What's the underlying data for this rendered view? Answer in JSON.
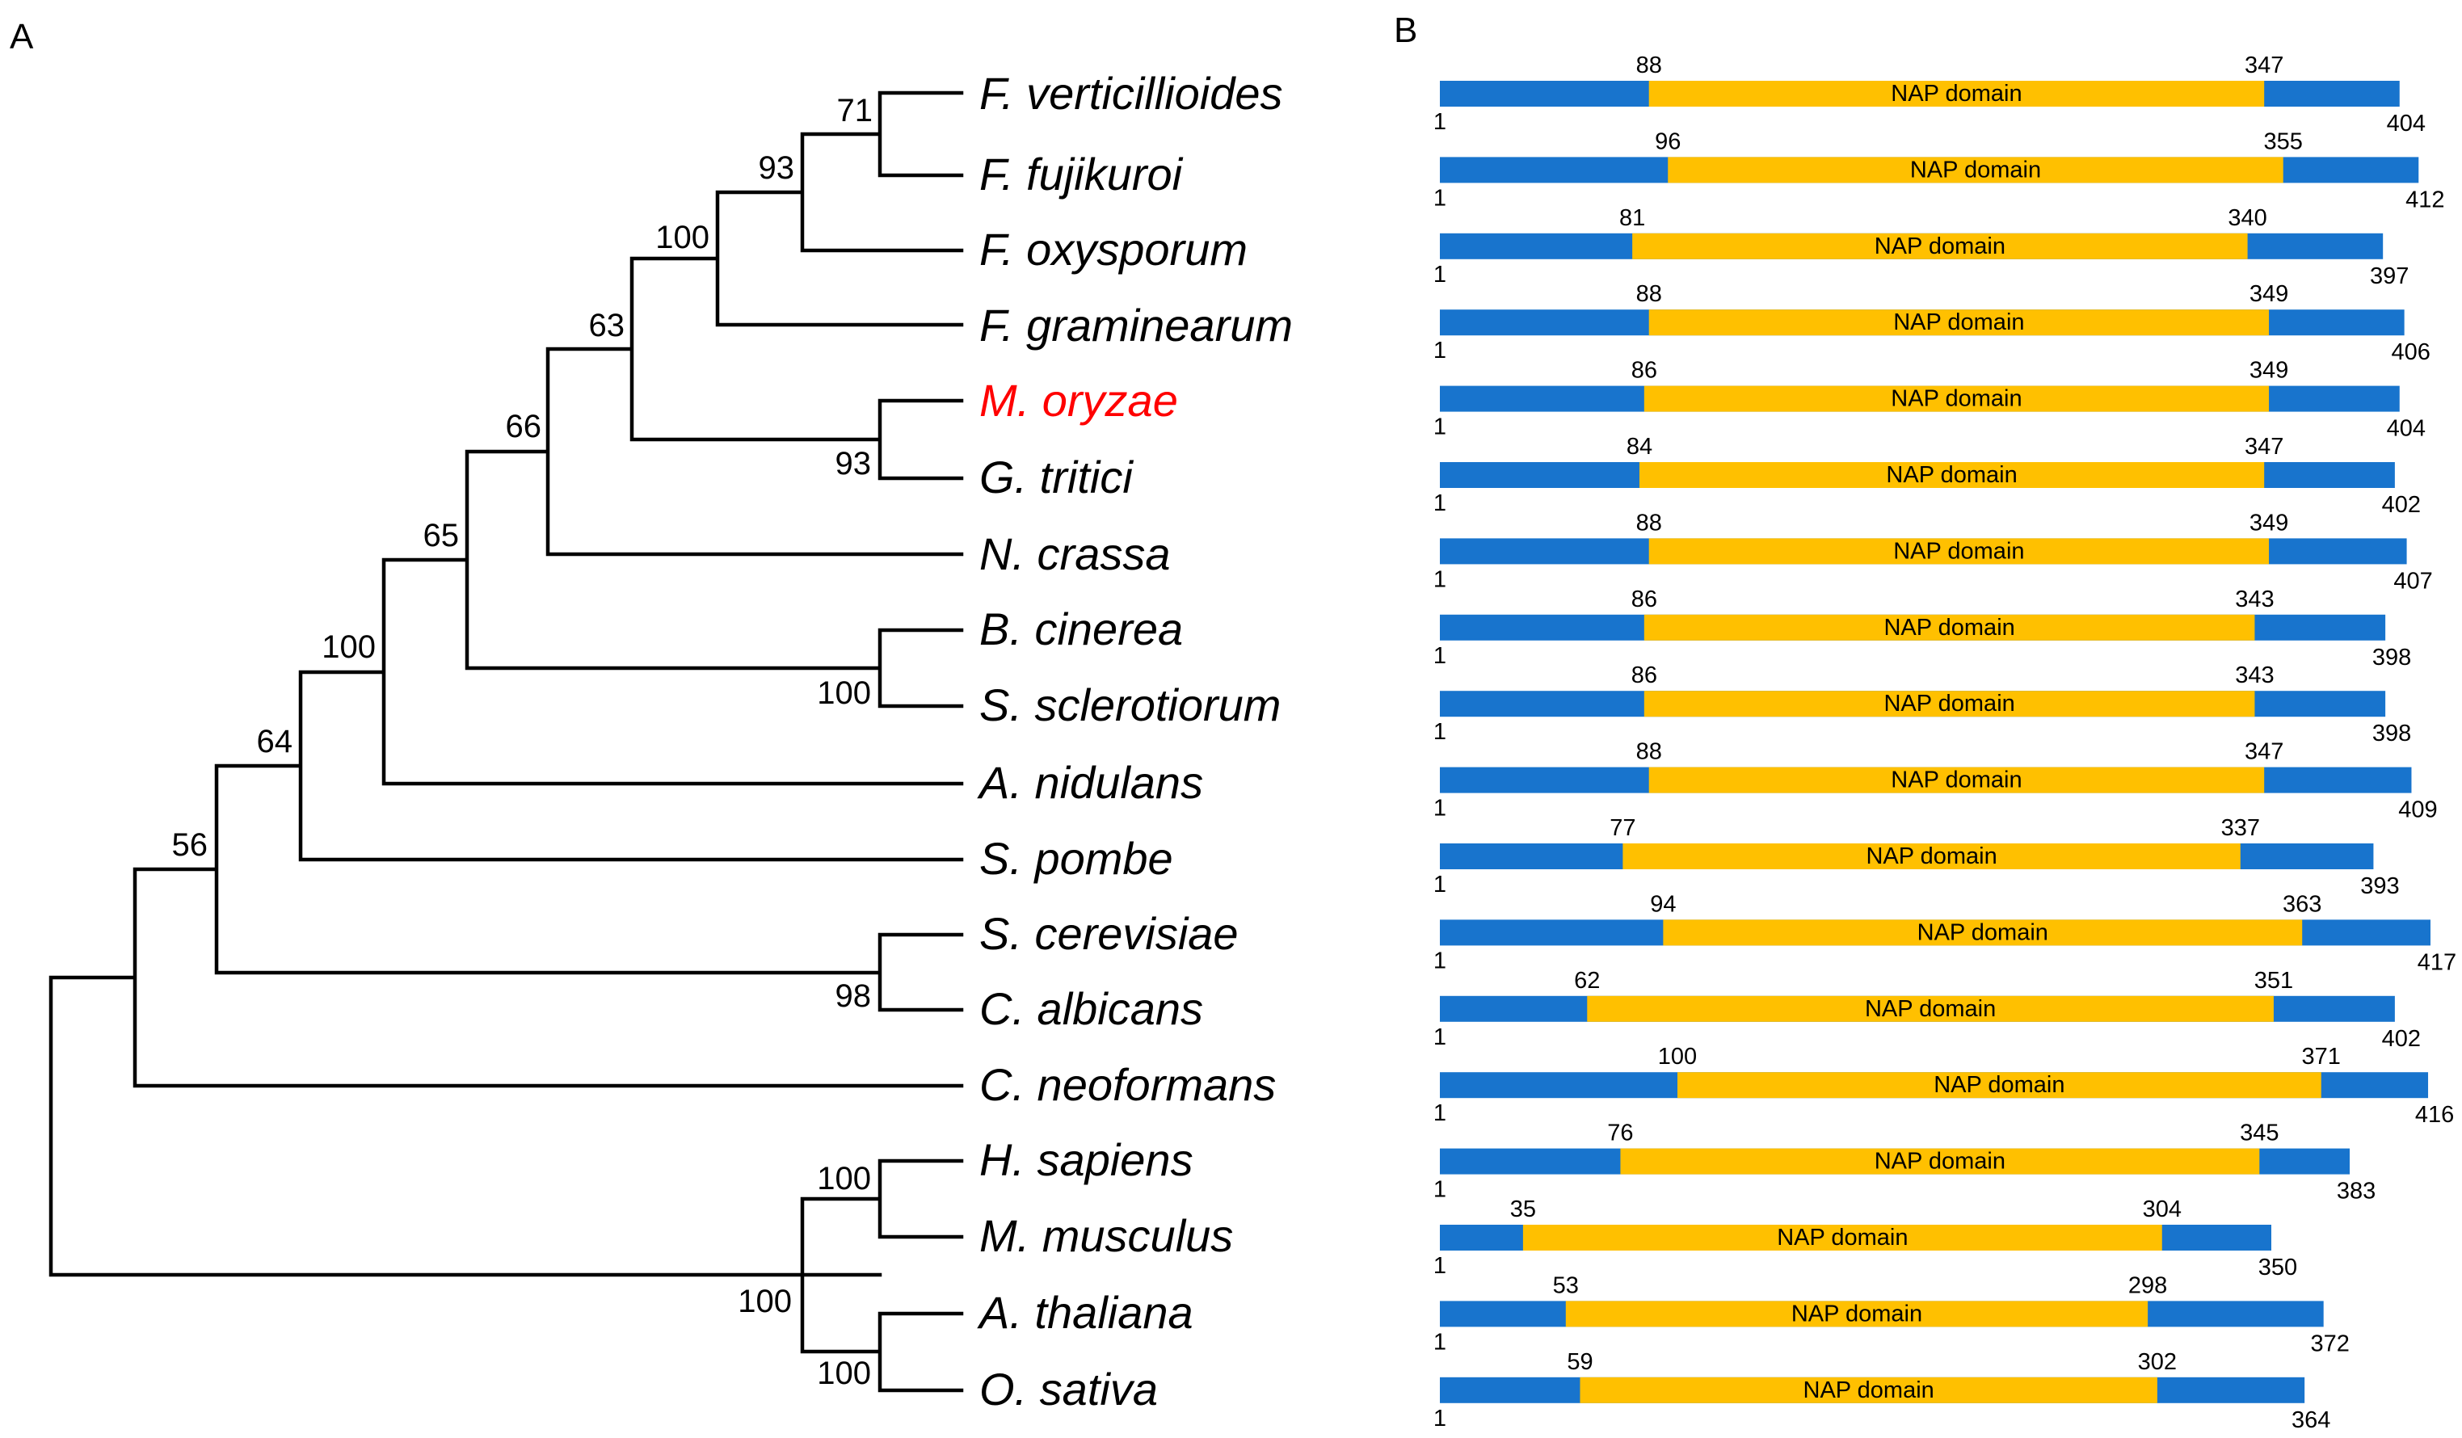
{
  "panels": {
    "a_label": "A",
    "b_label": "B"
  },
  "colors": {
    "terminal": "#1874CD",
    "domain": "#FFC000",
    "highlight": "#FF0000",
    "text": "#000000"
  },
  "tree": {
    "leaves": [
      "F. verticillioides",
      "F. fujikuroi",
      "F. oxysporum",
      "F. graminearum",
      "M. oryzae",
      "G. tritici",
      "N. crassa",
      "B. cinerea",
      "S. sclerotiorum",
      "A. nidulans",
      "S. pombe",
      "S. cerevisiae",
      "C. albicans",
      "C. neoformans",
      "H. sapiens",
      "M. musculus",
      "A. thaliana",
      "O. sativa"
    ],
    "highlighted_leaf": "M. oryzae",
    "bootstrap_values": [
      "71",
      "93",
      "100",
      "63",
      "93",
      "66",
      "65",
      "100",
      "100",
      "64",
      "56",
      "98",
      "100",
      "100",
      "100"
    ]
  },
  "domain_name": "NAP domain",
  "proteins": [
    {
      "species": "F. verticillioides",
      "start": "1",
      "domain_start": "88",
      "domain_end": "347",
      "length": "404"
    },
    {
      "species": "F. fujikuroi",
      "start": "1",
      "domain_start": "96",
      "domain_end": "355",
      "length": "412"
    },
    {
      "species": "F. oxysporum",
      "start": "1",
      "domain_start": "81",
      "domain_end": "340",
      "length": "397"
    },
    {
      "species": "F. graminearum",
      "start": "1",
      "domain_start": "88",
      "domain_end": "349",
      "length": "406"
    },
    {
      "species": "M. oryzae",
      "start": "1",
      "domain_start": "86",
      "domain_end": "349",
      "length": "404"
    },
    {
      "species": "G. tritici",
      "start": "1",
      "domain_start": "84",
      "domain_end": "347",
      "length": "402"
    },
    {
      "species": "N. crassa",
      "start": "1",
      "domain_start": "88",
      "domain_end": "349",
      "length": "407"
    },
    {
      "species": "B. cinerea",
      "start": "1",
      "domain_start": "86",
      "domain_end": "343",
      "length": "398"
    },
    {
      "species": "S. sclerotiorum",
      "start": "1",
      "domain_start": "86",
      "domain_end": "343",
      "length": "398"
    },
    {
      "species": "A. nidulans",
      "start": "1",
      "domain_start": "88",
      "domain_end": "347",
      "length": "409"
    },
    {
      "species": "S. pombe",
      "start": "1",
      "domain_start": "77",
      "domain_end": "337",
      "length": "393"
    },
    {
      "species": "S. cerevisiae",
      "start": "1",
      "domain_start": "94",
      "domain_end": "363",
      "length": "417"
    },
    {
      "species": "C. albicans",
      "start": "1",
      "domain_start": "62",
      "domain_end": "351",
      "length": "402"
    },
    {
      "species": "C. neoformans",
      "start": "1",
      "domain_start": "100",
      "domain_end": "371",
      "length": "416"
    },
    {
      "species": "H. sapiens",
      "start": "1",
      "domain_start": "76",
      "domain_end": "345",
      "length": "383"
    },
    {
      "species": "M. musculus",
      "start": "1",
      "domain_start": "35",
      "domain_end": "304",
      "length": "350"
    },
    {
      "species": "A. thaliana",
      "start": "1",
      "domain_start": "53",
      "domain_end": "298",
      "length": "372"
    },
    {
      "species": "O. sativa",
      "start": "1",
      "domain_start": "59",
      "domain_end": "302",
      "length": "364"
    }
  ]
}
